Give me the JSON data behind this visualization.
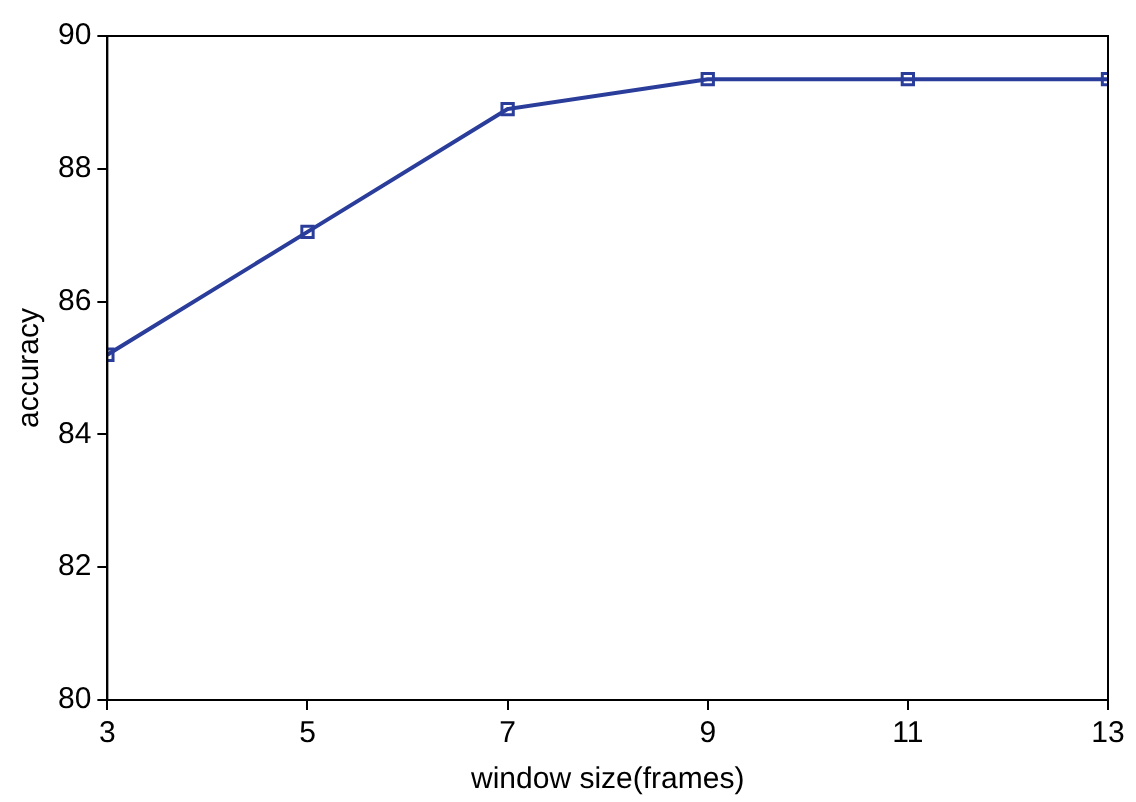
{
  "chart_data": {
    "type": "line",
    "xlabel": "window size(frames)",
    "ylabel": "accuracy",
    "x": [
      3,
      5,
      7,
      9,
      11,
      13
    ],
    "series": [
      {
        "color": "#2a3d9b",
        "values": [
          85.2,
          87.05,
          88.9,
          89.35,
          89.35,
          89.35
        ]
      }
    ],
    "xlim": [
      3,
      13
    ],
    "xticks": [
      3,
      5,
      7,
      9,
      11,
      13
    ],
    "ylim": [
      80,
      90
    ],
    "yticks": [
      80,
      82,
      84,
      86,
      88,
      90
    ],
    "grid": false,
    "legend": false,
    "marker": "square",
    "line_style": "solid"
  }
}
